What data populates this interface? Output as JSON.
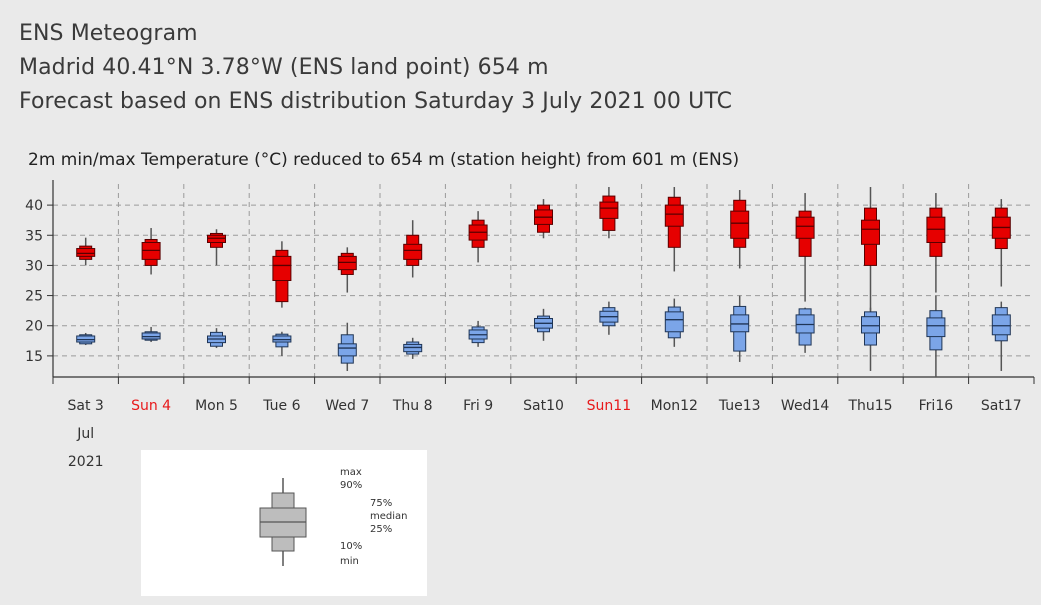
{
  "header": {
    "title": "ENS Meteogram",
    "location": "Madrid 40.41°N 3.78°W (ENS land point) 654 m",
    "forecast": "Forecast based on ENS distribution Saturday  3 July 2021 00 UTC"
  },
  "colors": {
    "max": "#e60000",
    "min": "#7ba5e8",
    "weekend_label": "#e8181a"
  },
  "chart_data": {
    "type": "boxplot",
    "title": "2m min/max Temperature (°C) reduced to 654 m (station height) from 601 m (ENS)",
    "x_labels": [
      {
        "day": "Sat 3",
        "extra": [
          "Jul",
          "2021"
        ],
        "weekend": false
      },
      {
        "day": "Sun 4",
        "weekend": true
      },
      {
        "day": "Mon 5",
        "weekend": false
      },
      {
        "day": "Tue 6",
        "weekend": false
      },
      {
        "day": "Wed 7",
        "weekend": false
      },
      {
        "day": "Thu 8",
        "weekend": false
      },
      {
        "day": "Fri 9",
        "weekend": false
      },
      {
        "day": "Sat10",
        "weekend": false
      },
      {
        "day": "Sun11",
        "weekend": true
      },
      {
        "day": "Mon12",
        "weekend": false
      },
      {
        "day": "Tue13",
        "weekend": false
      },
      {
        "day": "Wed14",
        "weekend": false
      },
      {
        "day": "Thu15",
        "weekend": false
      },
      {
        "day": "Fri16",
        "weekend": false
      },
      {
        "day": "Sat17",
        "weekend": false
      }
    ],
    "y_ticks": [
      15,
      20,
      25,
      30,
      35,
      40
    ],
    "ylim": [
      11.5,
      43.5
    ],
    "grid": true,
    "series": [
      {
        "name": "max",
        "color": "#e60000",
        "boxes": [
          {
            "day": 0,
            "min": 30.0,
            "p10": 31.0,
            "p25": 31.5,
            "median": 32.0,
            "p75": 32.8,
            "p90": 33.2,
            "max": 34.6
          },
          {
            "day": 1,
            "min": 28.5,
            "p10": 30.0,
            "p25": 31.0,
            "median": 32.5,
            "p75": 33.8,
            "p90": 34.3,
            "max": 36.2
          },
          {
            "day": 2,
            "min": 30.0,
            "p10": 33.0,
            "p25": 33.8,
            "median": 34.5,
            "p75": 35.0,
            "p90": 35.3,
            "max": 36.0
          },
          {
            "day": 3,
            "min": 23.0,
            "p10": 24.0,
            "p25": 27.5,
            "median": 30.0,
            "p75": 31.5,
            "p90": 32.5,
            "max": 34.0
          },
          {
            "day": 4,
            "min": 25.5,
            "p10": 28.5,
            "p25": 29.3,
            "median": 30.5,
            "p75": 31.5,
            "p90": 32.0,
            "max": 33.0
          },
          {
            "day": 5,
            "min": 28.0,
            "p10": 30.0,
            "p25": 31.0,
            "median": 32.5,
            "p75": 33.5,
            "p90": 35.0,
            "max": 37.5
          },
          {
            "day": 6,
            "min": 30.5,
            "p10": 33.0,
            "p25": 34.2,
            "median": 35.5,
            "p75": 36.7,
            "p90": 37.5,
            "max": 39.0
          },
          {
            "day": 7,
            "min": 34.5,
            "p10": 35.5,
            "p25": 36.8,
            "median": 38.0,
            "p75": 39.2,
            "p90": 40.0,
            "max": 41.0
          },
          {
            "day": 8,
            "min": 34.5,
            "p10": 35.8,
            "p25": 37.8,
            "median": 39.5,
            "p75": 40.5,
            "p90": 41.5,
            "max": 43.0
          },
          {
            "day": 9,
            "min": 29.0,
            "p10": 33.0,
            "p25": 36.5,
            "median": 38.5,
            "p75": 40.0,
            "p90": 41.3,
            "max": 43.0
          },
          {
            "day": 10,
            "min": 29.5,
            "p10": 33.0,
            "p25": 34.5,
            "median": 37.0,
            "p75": 39.0,
            "p90": 40.8,
            "max": 42.5
          },
          {
            "day": 11,
            "min": 24.0,
            "p10": 31.5,
            "p25": 34.5,
            "median": 36.5,
            "p75": 38.0,
            "p90": 39.0,
            "max": 42.0
          },
          {
            "day": 12,
            "min": 22.5,
            "p10": 30.0,
            "p25": 33.5,
            "median": 36.0,
            "p75": 37.5,
            "p90": 39.5,
            "max": 43.0
          },
          {
            "day": 13,
            "min": 25.5,
            "p10": 31.5,
            "p25": 33.8,
            "median": 36.0,
            "p75": 38.0,
            "p90": 39.5,
            "max": 42.0
          },
          {
            "day": 14,
            "min": 26.5,
            "p10": 32.8,
            "p25": 34.5,
            "median": 36.3,
            "p75": 38.0,
            "p90": 39.5,
            "max": 41.0
          }
        ]
      },
      {
        "name": "min",
        "color": "#7ba5e8",
        "boxes": [
          {
            "day": 0,
            "min": 16.8,
            "p10": 17.0,
            "p25": 17.3,
            "median": 17.7,
            "p75": 18.3,
            "p90": 18.5,
            "max": 18.8
          },
          {
            "day": 1,
            "min": 17.3,
            "p10": 17.6,
            "p25": 17.8,
            "median": 18.2,
            "p75": 18.8,
            "p90": 19.0,
            "max": 19.8
          },
          {
            "day": 2,
            "min": 16.3,
            "p10": 16.6,
            "p25": 17.2,
            "median": 17.8,
            "p75": 18.3,
            "p90": 18.9,
            "max": 19.6
          },
          {
            "day": 3,
            "min": 15.0,
            "p10": 16.5,
            "p25": 17.3,
            "median": 17.7,
            "p75": 18.3,
            "p90": 18.6,
            "max": 19.0
          },
          {
            "day": 4,
            "min": 12.5,
            "p10": 13.8,
            "p25": 15.0,
            "median": 16.3,
            "p75": 17.0,
            "p90": 18.5,
            "max": 20.5
          },
          {
            "day": 5,
            "min": 14.5,
            "p10": 15.3,
            "p25": 15.7,
            "median": 16.4,
            "p75": 16.9,
            "p90": 17.3,
            "max": 18.0
          },
          {
            "day": 6,
            "min": 16.5,
            "p10": 17.2,
            "p25": 17.8,
            "median": 18.5,
            "p75": 19.3,
            "p90": 19.8,
            "max": 20.8
          },
          {
            "day": 7,
            "min": 17.5,
            "p10": 19.0,
            "p25": 19.6,
            "median": 20.4,
            "p75": 21.2,
            "p90": 21.6,
            "max": 22.8
          },
          {
            "day": 8,
            "min": 18.5,
            "p10": 20.0,
            "p25": 20.6,
            "median": 21.5,
            "p75": 22.4,
            "p90": 23.0,
            "max": 24.0
          },
          {
            "day": 9,
            "min": 16.5,
            "p10": 18.0,
            "p25": 19.0,
            "median": 21.0,
            "p75": 22.3,
            "p90": 23.1,
            "max": 24.5
          },
          {
            "day": 10,
            "min": 14.0,
            "p10": 15.8,
            "p25": 19.0,
            "median": 20.3,
            "p75": 21.8,
            "p90": 23.2,
            "max": 25.0
          },
          {
            "day": 11,
            "min": 15.5,
            "p10": 16.8,
            "p25": 18.8,
            "median": 20.2,
            "p75": 21.8,
            "p90": 22.8,
            "max": 23.0
          },
          {
            "day": 12,
            "min": 12.5,
            "p10": 16.8,
            "p25": 18.8,
            "median": 20.0,
            "p75": 21.5,
            "p90": 22.3,
            "max": 23.0
          },
          {
            "day": 13,
            "min": 11.5,
            "p10": 16.0,
            "p25": 18.2,
            "median": 20.0,
            "p75": 21.3,
            "p90": 22.5,
            "max": 25.0
          },
          {
            "day": 14,
            "min": 12.5,
            "p10": 17.5,
            "p25": 18.5,
            "median": 20.0,
            "p75": 21.8,
            "p90": 23.0,
            "max": 24.0
          }
        ]
      }
    ]
  },
  "legend": {
    "max": "max",
    "p90": "90%",
    "p75": "75%",
    "median": "median",
    "p25": "25%",
    "p10": "10%",
    "min": "min"
  }
}
